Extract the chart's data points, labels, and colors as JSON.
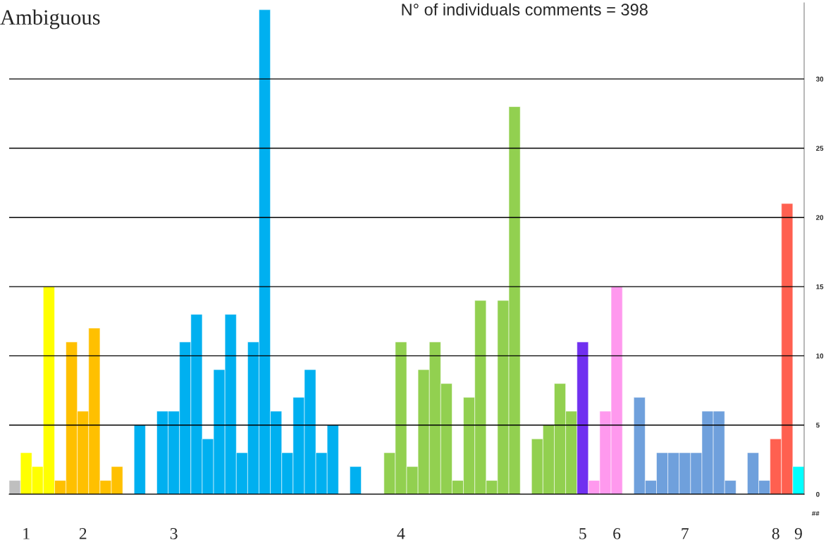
{
  "chart_data": {
    "type": "bar",
    "title": "Ambiguous",
    "subtitle": "N° of individuals comments = 398",
    "categories": [
      null,
      "1",
      null,
      null,
      null,
      null,
      "2",
      null,
      null,
      null,
      null,
      null,
      null,
      null,
      "3",
      null,
      null,
      null,
      null,
      null,
      null,
      null,
      null,
      null,
      null,
      null,
      null,
      null,
      null,
      null,
      null,
      null,
      null,
      null,
      "4",
      null,
      null,
      null,
      null,
      null,
      null,
      null,
      null,
      null,
      null,
      null,
      null,
      null,
      null,
      null,
      "5",
      null,
      null,
      "6",
      null,
      null,
      null,
      null,
      null,
      "7",
      null,
      null,
      null,
      null,
      null,
      null,
      null,
      "8",
      null,
      "9"
    ],
    "values": [
      1,
      3,
      2,
      15,
      1,
      11,
      6,
      12,
      1,
      2,
      0,
      5,
      0,
      6,
      6,
      11,
      13,
      4,
      9,
      13,
      3,
      11,
      35,
      6,
      3,
      7,
      9,
      3,
      5,
      0,
      2,
      0,
      0,
      3,
      11,
      2,
      9,
      11,
      8,
      1,
      7,
      14,
      1,
      14,
      28,
      0,
      4,
      5,
      8,
      6,
      11,
      1,
      6,
      15,
      0,
      7,
      1,
      3,
      3,
      3,
      3,
      6,
      6,
      1,
      0,
      3,
      1,
      4,
      21,
      2
    ],
    "colors": [
      "#bfbfbf",
      "#ffff00",
      "#ffff00",
      "#ffff00",
      "#ffc000",
      "#ffc000",
      "#ffc000",
      "#ffc000",
      "#ffc000",
      "#ffc000",
      null,
      "#00b0f0",
      null,
      "#00b0f0",
      "#00b0f0",
      "#00b0f0",
      "#00b0f0",
      "#00b0f0",
      "#00b0f0",
      "#00b0f0",
      "#00b0f0",
      "#00b0f0",
      "#00b0f0",
      "#00b0f0",
      "#00b0f0",
      "#00b0f0",
      "#00b0f0",
      "#00b0f0",
      "#00b0f0",
      null,
      "#00b0f0",
      null,
      null,
      "#92d050",
      "#92d050",
      "#92d050",
      "#92d050",
      "#92d050",
      "#92d050",
      "#92d050",
      "#92d050",
      "#92d050",
      "#92d050",
      "#92d050",
      "#92d050",
      null,
      "#92d050",
      "#92d050",
      "#92d050",
      "#92d050",
      "#7030f0",
      "#ff99ee",
      "#ff99ee",
      "#ff99ee",
      null,
      "#6fa0dc",
      "#6fa0dc",
      "#6fa0dc",
      "#6fa0dc",
      "#6fa0dc",
      "#6fa0dc",
      "#6fa0dc",
      "#6fa0dc",
      "#6fa0dc",
      null,
      "#6fa0dc",
      "#6fa0dc",
      "#ff6050",
      "#ff6050",
      "#00ffff"
    ],
    "ylim": [
      0,
      35.5
    ],
    "yticks": [
      0,
      5,
      10,
      15,
      20,
      25,
      30
    ],
    "grid": "y",
    "annotations": [
      "##"
    ],
    "legend": false
  }
}
